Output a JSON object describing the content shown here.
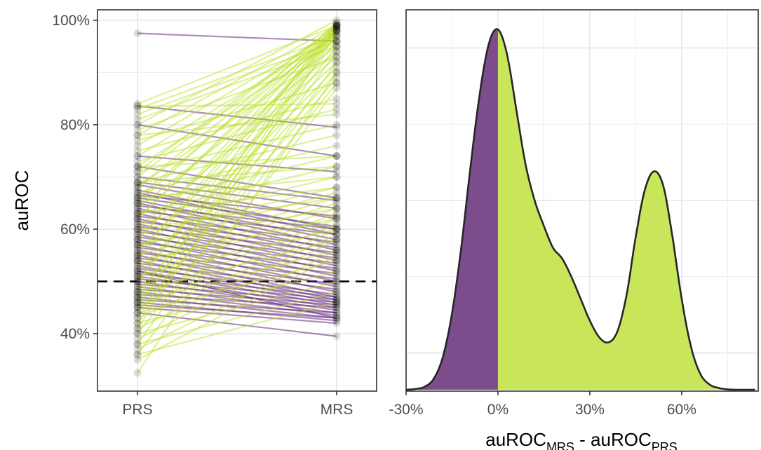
{
  "colors": {
    "improved": "#b5df1c",
    "worsened": "#5b1a73",
    "points": "#000000",
    "grid": "#ebebeb",
    "panel_border": "#333333",
    "density_line": "#262626",
    "density_fill_positive": "#c9e65a",
    "density_fill_negative": "#7d4c8c"
  },
  "chart_data": [
    {
      "type": "line",
      "subtype": "paired-slope",
      "title": "",
      "xlabel": "",
      "ylabel": "auROC",
      "categories": [
        "PRS",
        "MRS"
      ],
      "ylim": [
        0.29,
        1.02
      ],
      "y_ticks": [
        {
          "value": 0.4,
          "label": "40%"
        },
        {
          "value": 0.6,
          "label": "60%"
        },
        {
          "value": 0.8,
          "label": "80%"
        },
        {
          "value": 1.0,
          "label": "100%"
        }
      ],
      "reference_line": {
        "y": 0.5,
        "style": "dashed"
      },
      "grid": true,
      "legend": "none",
      "series": [
        {
          "color_key": "worsened",
          "pairs": [
            [
              0.975,
              0.96
            ],
            [
              0.836,
              0.795
            ],
            [
              0.8,
              0.74
            ],
            [
              0.74,
              0.71
            ],
            [
              0.72,
              0.66
            ],
            [
              0.7,
              0.655
            ],
            [
              0.69,
              0.64
            ],
            [
              0.685,
              0.62
            ],
            [
              0.675,
              0.6
            ],
            [
              0.67,
              0.59
            ],
            [
              0.665,
              0.625
            ],
            [
              0.66,
              0.605
            ],
            [
              0.655,
              0.58
            ],
            [
              0.65,
              0.57
            ],
            [
              0.645,
              0.6
            ],
            [
              0.64,
              0.56
            ],
            [
              0.635,
              0.59
            ],
            [
              0.63,
              0.55
            ],
            [
              0.625,
              0.575
            ],
            [
              0.62,
              0.54
            ],
            [
              0.615,
              0.565
            ],
            [
              0.61,
              0.53
            ],
            [
              0.605,
              0.555
            ],
            [
              0.6,
              0.52
            ],
            [
              0.595,
              0.545
            ],
            [
              0.59,
              0.51
            ],
            [
              0.585,
              0.535
            ],
            [
              0.58,
              0.5
            ],
            [
              0.575,
              0.525
            ],
            [
              0.57,
              0.49
            ],
            [
              0.565,
              0.515
            ],
            [
              0.56,
              0.48
            ],
            [
              0.555,
              0.505
            ],
            [
              0.55,
              0.47
            ],
            [
              0.545,
              0.495
            ],
            [
              0.54,
              0.465
            ],
            [
              0.535,
              0.485
            ],
            [
              0.53,
              0.46
            ],
            [
              0.525,
              0.475
            ],
            [
              0.52,
              0.455
            ],
            [
              0.515,
              0.47
            ],
            [
              0.51,
              0.45
            ],
            [
              0.505,
              0.465
            ],
            [
              0.5,
              0.445
            ],
            [
              0.495,
              0.46
            ],
            [
              0.49,
              0.44
            ],
            [
              0.485,
              0.455
            ],
            [
              0.48,
              0.435
            ],
            [
              0.475,
              0.45
            ],
            [
              0.47,
              0.43
            ],
            [
              0.465,
              0.44
            ],
            [
              0.46,
              0.425
            ],
            [
              0.455,
              0.43
            ],
            [
              0.45,
              0.42
            ],
            [
              0.44,
              0.395
            ],
            [
              0.52,
              0.43
            ]
          ]
        },
        {
          "color_key": "improved",
          "pairs": [
            [
              0.84,
              0.99
            ],
            [
              0.83,
              0.97
            ],
            [
              0.82,
              0.96
            ],
            [
              0.81,
              0.95
            ],
            [
              0.8,
              1.0
            ],
            [
              0.79,
              0.93
            ],
            [
              0.78,
              0.99
            ],
            [
              0.77,
              0.88
            ],
            [
              0.76,
              0.98
            ],
            [
              0.75,
              0.85
            ],
            [
              0.74,
              0.97
            ],
            [
              0.73,
              0.83
            ],
            [
              0.72,
              0.96
            ],
            [
              0.71,
              0.8
            ],
            [
              0.7,
              0.99
            ],
            [
              0.69,
              0.78
            ],
            [
              0.68,
              0.95
            ],
            [
              0.67,
              0.76
            ],
            [
              0.66,
              0.98
            ],
            [
              0.65,
              0.74
            ],
            [
              0.64,
              0.94
            ],
            [
              0.63,
              0.72
            ],
            [
              0.62,
              0.99
            ],
            [
              0.61,
              0.7
            ],
            [
              0.6,
              0.93
            ],
            [
              0.59,
              0.68
            ],
            [
              0.58,
              0.97
            ],
            [
              0.57,
              0.67
            ],
            [
              0.56,
              0.92
            ],
            [
              0.55,
              0.66
            ],
            [
              0.54,
              0.98
            ],
            [
              0.53,
              0.65
            ],
            [
              0.52,
              0.91
            ],
            [
              0.51,
              0.64
            ],
            [
              0.5,
              0.96
            ],
            [
              0.49,
              0.63
            ],
            [
              0.48,
              0.9
            ],
            [
              0.47,
              0.62
            ],
            [
              0.46,
              0.95
            ],
            [
              0.45,
              0.61
            ],
            [
              0.44,
              0.89
            ],
            [
              0.43,
              0.6
            ],
            [
              0.42,
              0.94
            ],
            [
              0.41,
              0.59
            ],
            [
              0.4,
              0.88
            ],
            [
              0.39,
              0.58
            ],
            [
              0.38,
              0.92
            ],
            [
              0.37,
              0.56
            ],
            [
              0.36,
              0.87
            ],
            [
              0.35,
              0.55
            ],
            [
              0.325,
              0.9
            ],
            [
              0.835,
              0.84
            ],
            [
              0.78,
              0.82
            ],
            [
              0.72,
              0.74
            ],
            [
              0.69,
              0.72
            ],
            [
              0.66,
              0.7
            ],
            [
              0.63,
              0.68
            ],
            [
              0.6,
              0.66
            ],
            [
              0.57,
              0.64
            ],
            [
              0.54,
              0.62
            ],
            [
              0.51,
              0.6
            ],
            [
              0.48,
              0.58
            ],
            [
              0.46,
              0.56
            ],
            [
              0.44,
              0.54
            ],
            [
              0.42,
              0.52
            ],
            [
              0.4,
              0.5
            ],
            [
              0.38,
              0.48
            ],
            [
              0.36,
              0.46
            ],
            [
              0.5,
              0.995
            ],
            [
              0.47,
              0.99
            ],
            [
              0.45,
              0.985
            ],
            [
              0.43,
              0.98
            ],
            [
              0.41,
              0.975
            ],
            [
              0.55,
              0.985
            ],
            [
              0.58,
              0.99
            ],
            [
              0.62,
              0.98
            ],
            [
              0.65,
              0.995
            ],
            [
              0.68,
              0.985
            ],
            [
              0.71,
              0.99
            ]
          ]
        }
      ]
    },
    {
      "type": "area",
      "subtype": "density",
      "title": "",
      "xlabel": "auROCₘᵣₛ - auROCₚᵣₛ",
      "xlabel_parts": {
        "a": "auROC",
        "a_sub": "MRS",
        "sep": " - ",
        "b": "auROC",
        "b_sub": "PRS"
      },
      "ylabel": "",
      "xlim": [
        -0.3,
        0.85
      ],
      "x_ticks": [
        {
          "value": -0.3,
          "label": "-30%"
        },
        {
          "value": 0.0,
          "label": "0%"
        },
        {
          "value": 0.3,
          "label": "30%"
        },
        {
          "value": 0.6,
          "label": "60%"
        }
      ],
      "grid": true,
      "legend": "none",
      "split_at": 0.0,
      "x": [
        -0.3,
        -0.27,
        -0.24,
        -0.21,
        -0.18,
        -0.15,
        -0.12,
        -0.09,
        -0.06,
        -0.03,
        0.0,
        0.03,
        0.06,
        0.09,
        0.12,
        0.15,
        0.18,
        0.21,
        0.24,
        0.27,
        0.3,
        0.33,
        0.36,
        0.39,
        0.42,
        0.45,
        0.48,
        0.51,
        0.54,
        0.57,
        0.6,
        0.63,
        0.66,
        0.69,
        0.72,
        0.75,
        0.78,
        0.81,
        0.84
      ],
      "density": [
        0.0,
        0.002,
        0.008,
        0.03,
        0.09,
        0.21,
        0.39,
        0.61,
        0.81,
        0.95,
        0.99,
        0.92,
        0.77,
        0.62,
        0.52,
        0.45,
        0.39,
        0.36,
        0.31,
        0.25,
        0.19,
        0.145,
        0.13,
        0.16,
        0.26,
        0.42,
        0.55,
        0.6,
        0.56,
        0.42,
        0.25,
        0.12,
        0.045,
        0.015,
        0.005,
        0.001,
        0.0,
        0.0,
        0.0
      ]
    }
  ]
}
